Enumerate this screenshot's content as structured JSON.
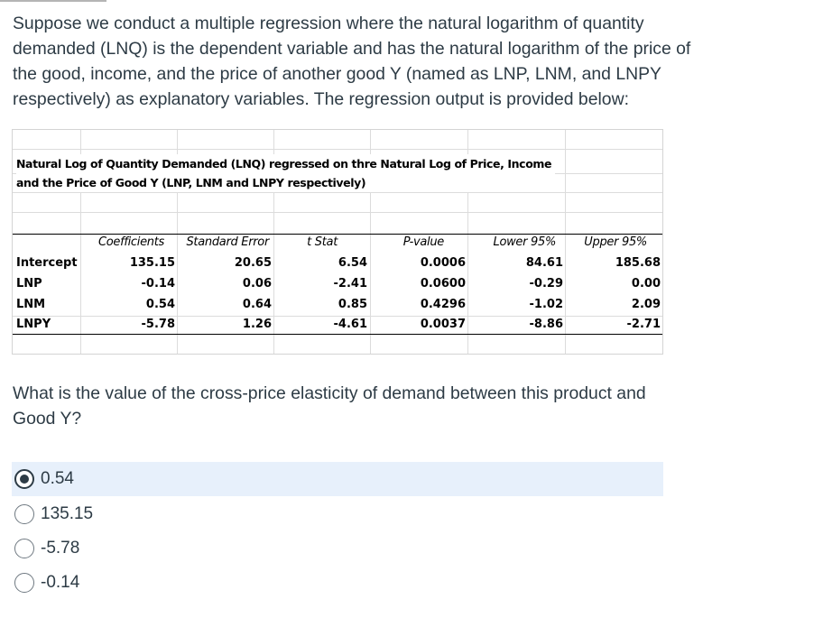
{
  "question": {
    "intro": "Suppose we conduct a multiple regression where the natural logarithm of quantity demanded (LNQ) is the dependent variable and has the natural logarithm of the price of the good, income, and the price of another good Y (named as LNP, LNM, and LNPY respectively) as explanatory variables. The regression output is provided below:",
    "prompt": "What is the value of the cross-price elasticity of demand between this product and Good Y?"
  },
  "table": {
    "title_line1": "Natural Log of Quantity Demanded (LNQ) regressed on thre Natural Log of Price, Income",
    "title_line2": "and the Price of Good Y (LNP, LNM and LNPY respectively)",
    "headers": [
      "Coefficients",
      "Standard Error",
      "t Stat",
      "P-value",
      "Lower 95%",
      "Upper 95%"
    ],
    "rows": [
      {
        "label": "Intercept",
        "values": [
          "135.15",
          "20.65",
          "6.54",
          "0.0006",
          "84.61",
          "185.68"
        ]
      },
      {
        "label": "LNP",
        "values": [
          "-0.14",
          "0.06",
          "-2.41",
          "0.0600",
          "-0.29",
          "0.00"
        ]
      },
      {
        "label": "LNM",
        "values": [
          "0.54",
          "0.64",
          "0.85",
          "0.4296",
          "-1.02",
          "2.09"
        ]
      },
      {
        "label": "LNPY",
        "values": [
          "-5.78",
          "1.26",
          "-4.61",
          "0.0037",
          "-8.86",
          "-2.71"
        ]
      }
    ]
  },
  "answers": [
    {
      "label": "0.54",
      "selected": true
    },
    {
      "label": "135.15",
      "selected": false
    },
    {
      "label": "-5.78",
      "selected": false
    },
    {
      "label": "-0.14",
      "selected": false
    }
  ],
  "colors": {
    "text": "#2d3b45",
    "selected_bg": "#e7f0fb"
  }
}
